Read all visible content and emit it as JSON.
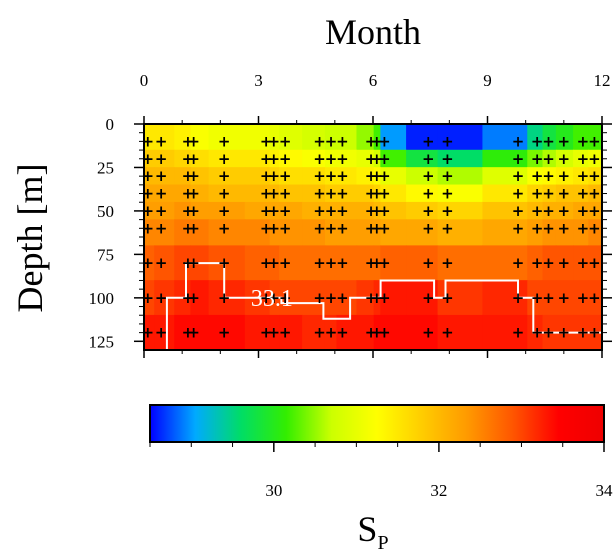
{
  "chart_data": {
    "type": "heatmap",
    "xlabel": "Month",
    "ylabel": "Depth [m]",
    "xlim": [
      0,
      12
    ],
    "ylim": [
      130,
      0
    ],
    "x_ticks": [
      0,
      3,
      6,
      9,
      12
    ],
    "y_ticks": [
      0,
      25,
      50,
      75,
      100,
      125
    ],
    "x_tick_labels": [
      "0",
      "3",
      "6",
      "9",
      "12"
    ],
    "y_tick_labels": [
      "0",
      "25",
      "50",
      "75",
      "100",
      "125"
    ],
    "colorbar": {
      "label_main": "S",
      "label_sub": "P",
      "range": [
        28.5,
        34
      ],
      "ticks": [
        30,
        32,
        34
      ],
      "tick_labels": [
        "30",
        "32",
        "34"
      ],
      "colors": [
        "#0000ff",
        "#00aaff",
        "#00dd66",
        "#33ee00",
        "#ccff00",
        "#ffff00",
        "#ffcc00",
        "#ff9900",
        "#ff5500",
        "#ff0000",
        "#ee0000"
      ]
    },
    "contour": {
      "level": 33.1,
      "label": "33.1"
    },
    "contour_line": [
      [
        0.6,
        130
      ],
      [
        0.6,
        100
      ],
      [
        1.1,
        100
      ],
      [
        1.1,
        80
      ],
      [
        2.1,
        80
      ],
      [
        2.1,
        100
      ],
      [
        3.6,
        100
      ],
      [
        3.6,
        103
      ],
      [
        4.7,
        103
      ],
      [
        4.7,
        112
      ],
      [
        5.4,
        112
      ],
      [
        5.4,
        100
      ],
      [
        6.2,
        100
      ],
      [
        6.2,
        90
      ],
      [
        7.6,
        90
      ],
      [
        7.6,
        100
      ],
      [
        7.9,
        100
      ],
      [
        7.9,
        90
      ],
      [
        9.8,
        90
      ],
      [
        9.8,
        100
      ],
      [
        10.2,
        100
      ],
      [
        10.2,
        120
      ],
      [
        12,
        120
      ]
    ],
    "grid": {
      "months": [
        0.1,
        0.45,
        1.15,
        1.3,
        2.1,
        3.2,
        3.4,
        3.7,
        4.6,
        4.9,
        5.2,
        5.95,
        6.1,
        6.3,
        7.45,
        7.95,
        9.8,
        10.3,
        10.6,
        11.0,
        11.5,
        11.8
      ],
      "depths": [
        10,
        20,
        30,
        40,
        50,
        60,
        80,
        100,
        120
      ],
      "salinity": [
        [
          31.5,
          31.5,
          31.4,
          31.2,
          31.1,
          31.1,
          31.0,
          30.9,
          30.8,
          30.7,
          30.7,
          30.5,
          30.2,
          29.0,
          28.6,
          28.6,
          28.9,
          29.5,
          29.8,
          30.0,
          30.2,
          30.2
        ],
        [
          31.8,
          31.8,
          31.7,
          31.6,
          31.5,
          31.5,
          31.4,
          31.3,
          31.2,
          31.1,
          31.1,
          31.0,
          30.8,
          30.2,
          29.8,
          29.6,
          30.1,
          30.4,
          30.6,
          30.8,
          31.0,
          31.1
        ],
        [
          32.0,
          32.0,
          32.0,
          31.9,
          31.8,
          31.8,
          31.7,
          31.6,
          31.6,
          31.5,
          31.5,
          31.4,
          31.3,
          31.0,
          30.7,
          30.6,
          30.9,
          31.2,
          31.3,
          31.4,
          31.5,
          31.6
        ],
        [
          32.2,
          32.2,
          32.2,
          32.1,
          32.0,
          32.0,
          32.0,
          31.9,
          31.9,
          31.8,
          31.8,
          31.8,
          31.7,
          31.5,
          31.3,
          31.2,
          31.5,
          31.7,
          31.8,
          31.9,
          31.9,
          32.0
        ],
        [
          32.3,
          32.3,
          32.4,
          32.3,
          32.3,
          32.2,
          32.2,
          32.2,
          32.1,
          32.1,
          32.1,
          32.1,
          32.0,
          31.9,
          31.8,
          31.7,
          31.9,
          32.0,
          32.1,
          32.1,
          32.2,
          32.2
        ],
        [
          32.5,
          32.5,
          32.6,
          32.6,
          32.5,
          32.5,
          32.4,
          32.4,
          32.4,
          32.3,
          32.3,
          32.3,
          32.3,
          32.2,
          32.2,
          32.1,
          32.2,
          32.3,
          32.4,
          32.4,
          32.4,
          32.5
        ],
        [
          32.8,
          32.9,
          33.0,
          33.0,
          32.9,
          32.8,
          32.8,
          32.7,
          32.7,
          32.7,
          32.7,
          32.7,
          32.7,
          32.8,
          32.8,
          32.7,
          32.7,
          32.8,
          32.9,
          32.9,
          32.9,
          32.9
        ],
        [
          33.0,
          33.1,
          33.2,
          33.3,
          33.2,
          33.1,
          33.0,
          33.0,
          33.0,
          33.0,
          33.0,
          33.1,
          33.2,
          33.3,
          33.3,
          33.1,
          33.2,
          33.0,
          33.0,
          33.0,
          33.0,
          33.0
        ],
        [
          33.3,
          33.3,
          33.4,
          33.4,
          33.4,
          33.3,
          33.3,
          33.3,
          33.2,
          33.2,
          33.3,
          33.3,
          33.4,
          33.4,
          33.4,
          33.3,
          33.3,
          33.2,
          33.1,
          33.1,
          33.1,
          33.1
        ]
      ]
    },
    "samples": {
      "months": [
        0.1,
        0.45,
        1.15,
        1.3,
        2.1,
        3.2,
        3.4,
        3.7,
        4.6,
        4.9,
        5.2,
        5.95,
        6.1,
        6.3,
        7.45,
        7.95,
        9.8,
        10.3,
        10.6,
        11.0,
        11.5,
        11.8
      ],
      "depths": [
        10,
        20,
        30,
        40,
        50,
        60,
        80,
        100,
        120
      ]
    }
  }
}
